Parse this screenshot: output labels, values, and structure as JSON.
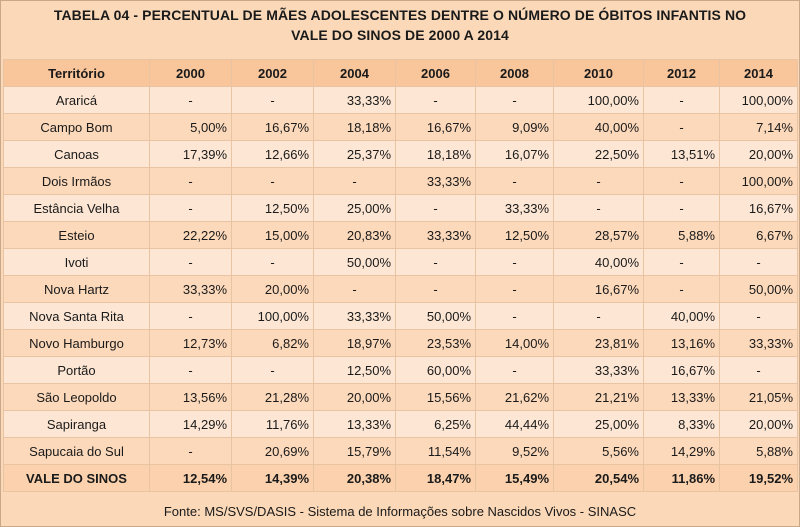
{
  "title_line1": "TABELA 04 - PERCENTUAL DE MÃES ADOLESCENTES DENTRE O NÚMERO DE ÓBITOS INFANTIS NO",
  "title_line2": "VALE DO SINOS DE 2000 A 2014",
  "headers": [
    "Território",
    "2000",
    "2002",
    "2004",
    "2006",
    "2008",
    "2010",
    "2012",
    "2014"
  ],
  "rows": [
    [
      "Araricá",
      "-",
      "-",
      "33,33%",
      "-",
      "-",
      "100,00%",
      "-",
      "100,00%"
    ],
    [
      "Campo Bom",
      "5,00%",
      "16,67%",
      "18,18%",
      "16,67%",
      "9,09%",
      "40,00%",
      "-",
      "7,14%"
    ],
    [
      "Canoas",
      "17,39%",
      "12,66%",
      "25,37%",
      "18,18%",
      "16,07%",
      "22,50%",
      "13,51%",
      "20,00%"
    ],
    [
      "Dois Irmãos",
      "-",
      "-",
      "-",
      "33,33%",
      "-",
      "-",
      "-",
      "100,00%"
    ],
    [
      "Estância Velha",
      "-",
      "12,50%",
      "25,00%",
      "-",
      "33,33%",
      "-",
      "-",
      "16,67%"
    ],
    [
      "Esteio",
      "22,22%",
      "15,00%",
      "20,83%",
      "33,33%",
      "12,50%",
      "28,57%",
      "5,88%",
      "6,67%"
    ],
    [
      "Ivoti",
      "-",
      "-",
      "50,00%",
      "-",
      "-",
      "40,00%",
      "-",
      "-"
    ],
    [
      "Nova Hartz",
      "33,33%",
      "20,00%",
      "-",
      "-",
      "-",
      "16,67%",
      "-",
      "50,00%"
    ],
    [
      "Nova Santa Rita",
      "-",
      "100,00%",
      "33,33%",
      "50,00%",
      "-",
      "-",
      "40,00%",
      "-"
    ],
    [
      "Novo Hamburgo",
      "12,73%",
      "6,82%",
      "18,97%",
      "23,53%",
      "14,00%",
      "23,81%",
      "13,16%",
      "33,33%"
    ],
    [
      "Portão",
      "-",
      "-",
      "12,50%",
      "60,00%",
      "-",
      "33,33%",
      "16,67%",
      "-"
    ],
    [
      "São Leopoldo",
      "13,56%",
      "21,28%",
      "20,00%",
      "15,56%",
      "21,62%",
      "21,21%",
      "13,33%",
      "21,05%"
    ],
    [
      "Sapiranga",
      "14,29%",
      "11,76%",
      "13,33%",
      "6,25%",
      "44,44%",
      "25,00%",
      "8,33%",
      "20,00%"
    ],
    [
      "Sapucaia do Sul",
      "-",
      "20,69%",
      "15,79%",
      "11,54%",
      "9,52%",
      "5,56%",
      "14,29%",
      "5,88%"
    ]
  ],
  "total_row": [
    "VALE DO SINOS",
    "12,54%",
    "14,39%",
    "20,38%",
    "18,47%",
    "15,49%",
    "20,54%",
    "11,86%",
    "19,52%"
  ],
  "footer": "Fonte: MS/SVS/DASIS - Sistema de Informações sobre Nascidos Vivos - SINASC"
}
